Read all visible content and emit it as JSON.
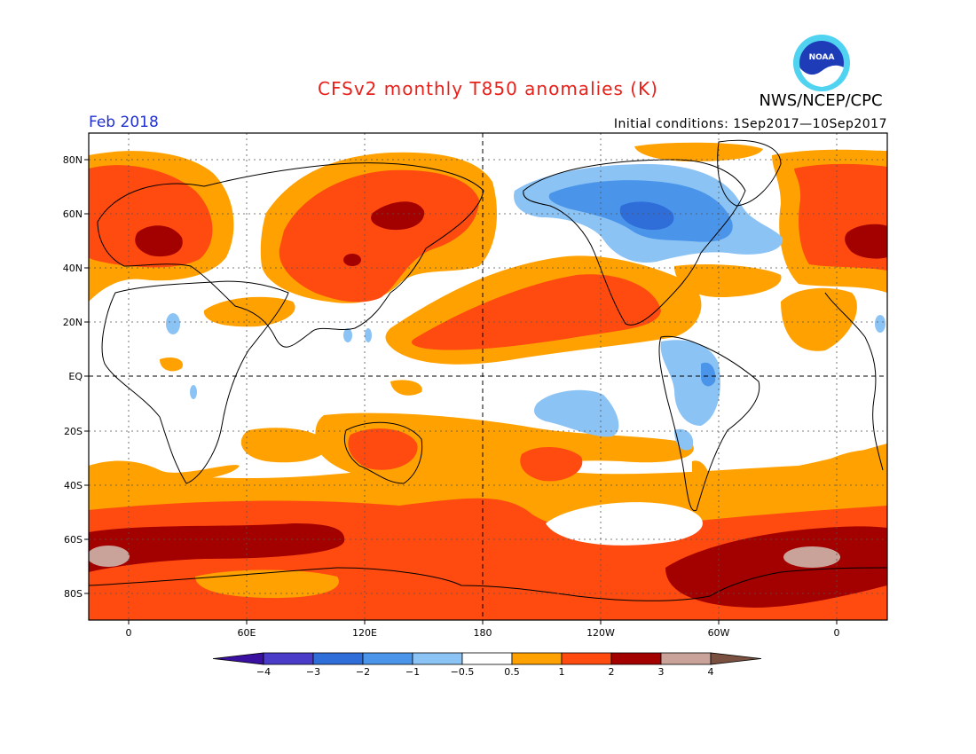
{
  "title": "CFSv2 monthly T850 anomalies (K)",
  "agency": "NWS/NCEP/CPC",
  "logo_text": "NOAA",
  "period": "Feb 2018",
  "initial_conditions": "Initial conditions: 1Sep2017—10Sep2017",
  "lat_labels": [
    "80N",
    "60N",
    "40N",
    "20N",
    "EQ",
    "20S",
    "40S",
    "60S",
    "80S"
  ],
  "lon_labels": [
    "0",
    "60E",
    "120E",
    "180",
    "120W",
    "60W",
    "0"
  ],
  "colorbar": {
    "labels": [
      "−4",
      "−3",
      "−2",
      "−1",
      "−0.5",
      "0.5",
      "1",
      "2",
      "3",
      "4"
    ],
    "colors": [
      "#3a10a0",
      "#4a3cc8",
      "#2f6ed8",
      "#4a95ea",
      "#8cc3f5",
      "#ffffff",
      "#ffa100",
      "#ff4a10",
      "#a30000",
      "#c9a39a",
      "#7a5040"
    ]
  },
  "colors": {
    "orange": "#ffa100",
    "red": "#ff4a10",
    "darkred": "#a30000",
    "tan": "#c9a39a",
    "lightblue": "#8cc3f5",
    "blue": "#4a95ea",
    "darkblue": "#2f6ed8"
  }
}
